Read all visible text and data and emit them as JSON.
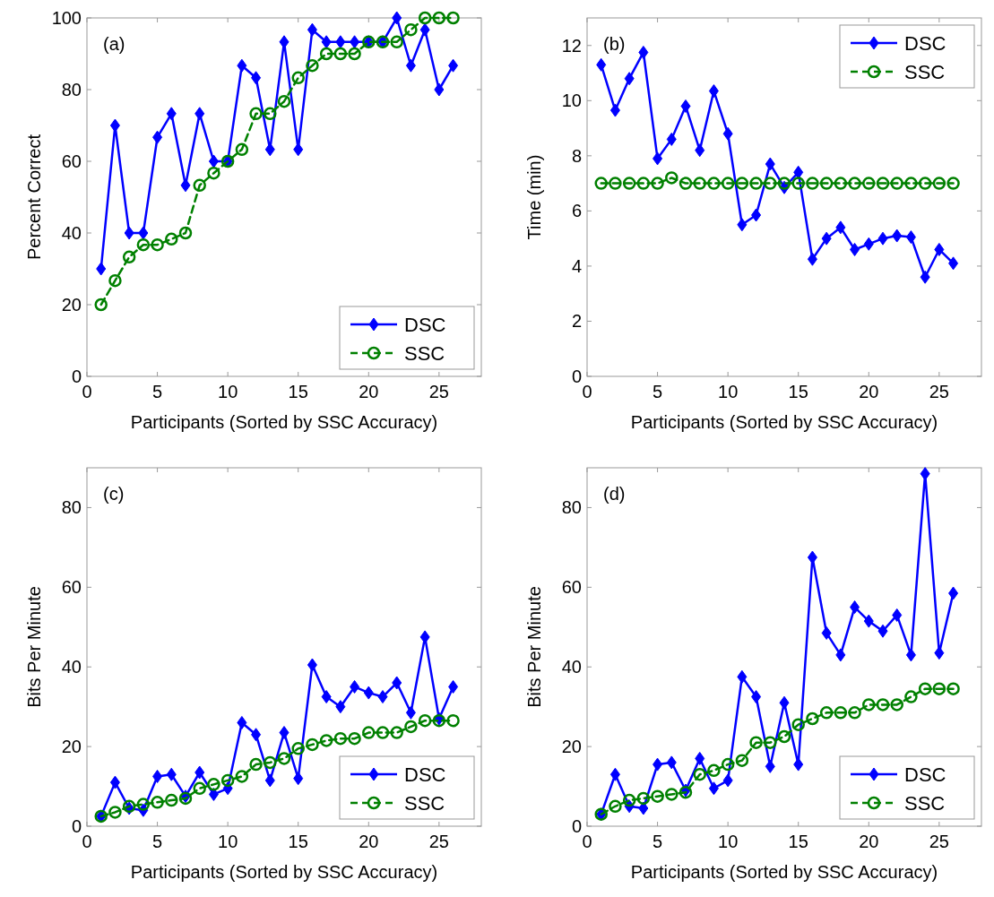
{
  "chart_data": [
    {
      "type": "line",
      "annotations": [
        "(a)"
      ],
      "xlabel": "Participants (Sorted by SSC Accuracy)",
      "ylabel": "Percent Correct",
      "x": [
        1,
        2,
        3,
        4,
        5,
        6,
        7,
        8,
        9,
        10,
        11,
        12,
        13,
        14,
        15,
        16,
        17,
        18,
        19,
        20,
        21,
        22,
        23,
        24,
        25,
        26
      ],
      "xlim": [
        0,
        28
      ],
      "xticks": [
        0,
        5,
        10,
        15,
        20,
        25
      ],
      "ylim": [
        0,
        100
      ],
      "yticks": [
        0,
        20,
        40,
        60,
        80,
        100
      ],
      "grid": false,
      "legend": "bottom right",
      "series": [
        {
          "name": "DSC",
          "color": "#0000ff",
          "marker": "diamond",
          "line_style": "solid",
          "values": [
            30,
            70,
            40,
            40,
            66.7,
            73.3,
            53.3,
            73.3,
            60,
            60,
            86.7,
            83.3,
            63.3,
            93.3,
            63.3,
            96.7,
            93.3,
            93.3,
            93.3,
            93.3,
            93.3,
            100,
            86.7,
            96.7,
            80,
            86.7
          ]
        },
        {
          "name": "SSC",
          "color": "#008000",
          "marker": "circle",
          "line_style": "dashed",
          "values": [
            20,
            26.7,
            33.3,
            36.7,
            36.7,
            38.3,
            40,
            53.3,
            56.7,
            60,
            63.3,
            73.3,
            73.3,
            76.7,
            83.3,
            86.7,
            90,
            90,
            90,
            93.3,
            93.3,
            93.3,
            96.7,
            100,
            100,
            100
          ]
        }
      ]
    },
    {
      "type": "line",
      "annotations": [
        "(b)"
      ],
      "xlabel": "Participants (Sorted by SSC Accuracy)",
      "ylabel": "Time (min)",
      "x": [
        1,
        2,
        3,
        4,
        5,
        6,
        7,
        8,
        9,
        10,
        11,
        12,
        13,
        14,
        15,
        16,
        17,
        18,
        19,
        20,
        21,
        22,
        23,
        24,
        25,
        26
      ],
      "xlim": [
        0,
        28
      ],
      "xticks": [
        0,
        5,
        10,
        15,
        20,
        25
      ],
      "ylim": [
        0,
        13
      ],
      "yticks": [
        0,
        2,
        4,
        6,
        8,
        10,
        12
      ],
      "grid": false,
      "legend": "top right",
      "series": [
        {
          "name": "DSC",
          "color": "#0000ff",
          "marker": "diamond",
          "line_style": "solid",
          "values": [
            11.3,
            9.65,
            10.8,
            11.75,
            7.9,
            8.6,
            9.8,
            8.2,
            10.35,
            8.8,
            5.5,
            5.85,
            7.7,
            6.85,
            7.4,
            4.25,
            5.0,
            5.4,
            4.6,
            4.8,
            5.0,
            5.1,
            5.05,
            3.6,
            4.6,
            4.1
          ]
        },
        {
          "name": "SSC",
          "color": "#008000",
          "marker": "circle",
          "line_style": "dashed",
          "values": [
            7,
            7,
            7,
            7,
            7,
            7.2,
            7,
            7,
            7,
            7,
            7,
            7,
            7,
            7,
            7,
            7,
            7,
            7,
            7,
            7,
            7,
            7,
            7,
            7,
            7,
            7
          ]
        }
      ]
    },
    {
      "type": "line",
      "annotations": [
        "(c)"
      ],
      "xlabel": "Participants (Sorted by SSC Accuracy)",
      "ylabel": "Bits Per Minute",
      "x": [
        1,
        2,
        3,
        4,
        5,
        6,
        7,
        8,
        9,
        10,
        11,
        12,
        13,
        14,
        15,
        16,
        17,
        18,
        19,
        20,
        21,
        22,
        23,
        24,
        25,
        26
      ],
      "xlim": [
        0,
        28
      ],
      "xticks": [
        0,
        5,
        10,
        15,
        20,
        25
      ],
      "ylim": [
        0,
        90
      ],
      "yticks": [
        0,
        20,
        40,
        60,
        80
      ],
      "grid": false,
      "legend": "bottom right",
      "series": [
        {
          "name": "DSC",
          "color": "#0000ff",
          "marker": "diamond",
          "line_style": "solid",
          "values": [
            2.5,
            11,
            4.5,
            4,
            12.5,
            13,
            7.5,
            13.5,
            8,
            9.5,
            26,
            23,
            11.5,
            23.5,
            12,
            40.5,
            32.5,
            30,
            35,
            33.5,
            32.5,
            36,
            28.5,
            47.5,
            27,
            35
          ]
        },
        {
          "name": "SSC",
          "color": "#008000",
          "marker": "circle",
          "line_style": "dashed",
          "values": [
            2.5,
            3.5,
            5,
            5.5,
            6,
            6.5,
            7,
            9.5,
            10.5,
            11.5,
            12.5,
            15.5,
            16,
            17,
            19.5,
            20.5,
            21.5,
            22,
            22,
            23.5,
            23.5,
            23.5,
            25,
            26.5,
            26.5,
            26.5
          ]
        }
      ]
    },
    {
      "type": "line",
      "annotations": [
        "(d)"
      ],
      "xlabel": "Participants (Sorted by SSC Accuracy)",
      "ylabel": "Bits Per Minute",
      "x": [
        1,
        2,
        3,
        4,
        5,
        6,
        7,
        8,
        9,
        10,
        11,
        12,
        13,
        14,
        15,
        16,
        17,
        18,
        19,
        20,
        21,
        22,
        23,
        24,
        25,
        26
      ],
      "xlim": [
        0,
        28
      ],
      "xticks": [
        0,
        5,
        10,
        15,
        20,
        25
      ],
      "ylim": [
        0,
        90
      ],
      "yticks": [
        0,
        20,
        40,
        60,
        80
      ],
      "grid": false,
      "legend": "bottom right",
      "series": [
        {
          "name": "DSC",
          "color": "#0000ff",
          "marker": "diamond",
          "line_style": "solid",
          "values": [
            3,
            13,
            5,
            4.5,
            15.5,
            16,
            9,
            17,
            9.5,
            11.5,
            37.5,
            32.5,
            15,
            31,
            15.5,
            67.5,
            48.5,
            43,
            55,
            51.5,
            49,
            53,
            43,
            88.5,
            43.5,
            58.5
          ]
        },
        {
          "name": "SSC",
          "color": "#008000",
          "marker": "circle",
          "line_style": "dashed",
          "values": [
            3,
            5,
            6.5,
            7,
            7.5,
            8,
            8.5,
            13,
            14,
            15.5,
            16.5,
            21,
            21,
            22.5,
            25.5,
            27,
            28.5,
            28.5,
            28.5,
            30.5,
            30.5,
            30.5,
            32.5,
            34.5,
            34.5,
            34.5
          ]
        }
      ]
    }
  ]
}
